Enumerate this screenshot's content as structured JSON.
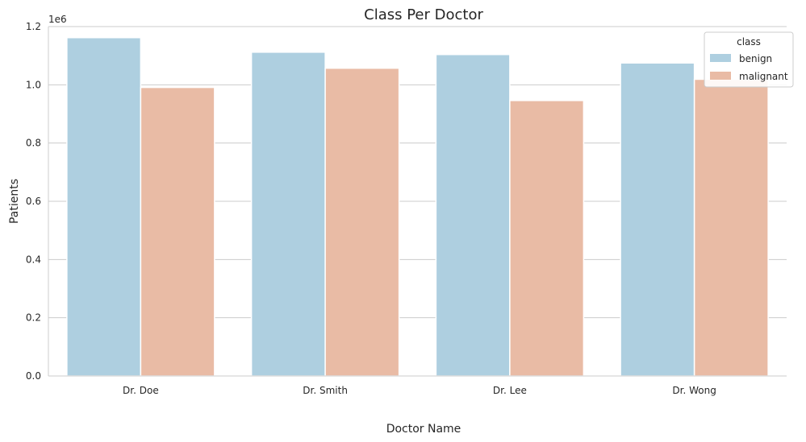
{
  "chart_data": {
    "type": "bar",
    "title": "Class Per Doctor",
    "xlabel": "Doctor Name",
    "ylabel": "Patients",
    "scale_label": "1e6",
    "categories": [
      "Dr. Doe",
      "Dr. Smith",
      "Dr. Lee",
      "Dr. Wong"
    ],
    "series": [
      {
        "name": "benign",
        "color": "#aecfe0",
        "values": [
          1162000,
          1112000,
          1104000,
          1075000
        ]
      },
      {
        "name": "malignant",
        "color": "#e9bba5",
        "values": [
          991000,
          1057000,
          946000,
          1019000
        ]
      }
    ],
    "ylim": [
      0,
      1200000
    ],
    "yticks": [
      0,
      200000,
      400000,
      600000,
      800000,
      1000000,
      1200000
    ],
    "ytick_labels": [
      "0.0",
      "0.2",
      "0.4",
      "0.6",
      "0.8",
      "1.0",
      "1.2"
    ],
    "legend": {
      "title": "class",
      "placement": "top-right"
    },
    "grid": "y"
  }
}
